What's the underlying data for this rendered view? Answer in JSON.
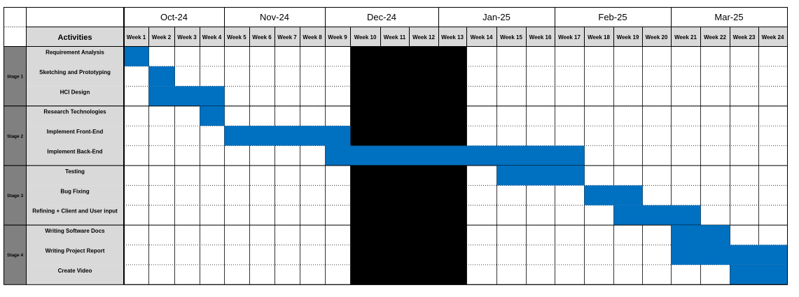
{
  "chart_data": {
    "type": "gantt",
    "activities_header": "Activities",
    "months": [
      {
        "label": "Oct-24",
        "weeks": 4
      },
      {
        "label": "Nov-24",
        "weeks": 4
      },
      {
        "label": "Dec-24",
        "weeks": 4
      },
      {
        "label": "Jan-25",
        "weeks": 4
      },
      {
        "label": "Feb-25",
        "weeks": 4
      },
      {
        "label": "Mar-25",
        "weeks": 4
      }
    ],
    "weeks": [
      "Week 1",
      "Week 2",
      "Week 3",
      "Week 4",
      "Week 5",
      "Week 6",
      "Week 7",
      "Week 8",
      "Week 9",
      "Week 10",
      "Week 11",
      "Week 12",
      "Week 13",
      "Week 14",
      "Week 15",
      "Week 16",
      "Week 17",
      "Week 18",
      "Week 19",
      "Week 20",
      "Week 21",
      "Week 22",
      "Week 23",
      "Week 24"
    ],
    "stages": [
      {
        "label": "Stage 1",
        "activities": [
          {
            "name": "Requirement Analysis",
            "start_week": 1,
            "end_week": 1
          },
          {
            "name": "Sketching and Prototyping",
            "start_week": 2,
            "end_week": 2
          },
          {
            "name": "HCI Design",
            "start_week": 2,
            "end_week": 4
          }
        ]
      },
      {
        "label": "Stage 2",
        "activities": [
          {
            "name": "Research Technologies",
            "start_week": 4,
            "end_week": 4
          },
          {
            "name": "Implement Front-End",
            "start_week": 5,
            "end_week": 9
          },
          {
            "name": "Implement Back-End",
            "start_week": 9,
            "end_week": 17
          }
        ]
      },
      {
        "label": "Stage 3",
        "activities": [
          {
            "name": "Testing",
            "start_week": 15,
            "end_week": 17
          },
          {
            "name": "Bug Fixing",
            "start_week": 18,
            "end_week": 19
          },
          {
            "name": "Refining + Client and User input",
            "start_week": 19,
            "end_week": 21
          }
        ]
      },
      {
        "label": "Stage 4",
        "activities": [
          {
            "name": "Writing Software Docs",
            "start_week": 21,
            "end_week": 22
          },
          {
            "name": "Writing Project Report",
            "start_week": 21,
            "end_week": 24
          },
          {
            "name": "Create Video",
            "start_week": 23,
            "end_week": 24
          }
        ]
      }
    ],
    "blocked_weeks": {
      "start_week": 10,
      "end_week": 13
    },
    "colors": {
      "bar": "#0070C0",
      "blocked": "#000000",
      "header_bg": "#D9D9D9",
      "stage_bg": "#808080",
      "grid": "#000000"
    }
  }
}
